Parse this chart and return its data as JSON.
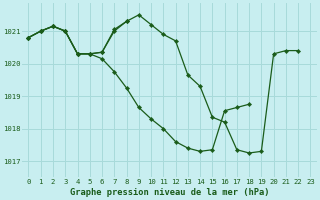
{
  "title": "Graphe pression niveau de la mer (hPa)",
  "bg_color": "#c8eef0",
  "grid_color": "#a8dada",
  "line_color": "#1a5c1a",
  "xlim": [
    -0.5,
    23.5
  ],
  "ylim": [
    1016.5,
    1021.85
  ],
  "yticks": [
    1017,
    1018,
    1019,
    1020,
    1021
  ],
  "xticks": [
    0,
    1,
    2,
    3,
    4,
    5,
    6,
    7,
    8,
    9,
    10,
    11,
    12,
    13,
    14,
    15,
    16,
    17,
    18,
    19,
    20,
    21,
    22,
    23
  ],
  "series": [
    {
      "x": [
        0,
        1,
        2,
        3,
        4,
        5,
        6,
        7,
        8,
        9,
        10,
        11,
        12,
        13,
        14,
        15,
        16,
        17,
        18,
        19,
        20,
        21,
        22
      ],
      "y": [
        1020.8,
        1021.0,
        1021.15,
        1021.0,
        1020.3,
        1020.3,
        1020.35,
        1021.05,
        1021.3,
        1021.5,
        1021.2,
        1020.9,
        1020.7,
        1019.65,
        1019.3,
        1018.35,
        1018.2,
        1017.35,
        1017.25,
        1017.3,
        1020.3,
        1020.4,
        1020.4
      ]
    },
    {
      "x": [
        0,
        1,
        2,
        3,
        4,
        5,
        6,
        7,
        8
      ],
      "y": [
        1020.8,
        1021.0,
        1021.15,
        1021.0,
        1020.3,
        1020.3,
        1020.35,
        1021.0,
        1021.3
      ]
    },
    {
      "x": [
        0,
        1,
        2,
        3,
        4,
        5,
        6,
        7,
        8,
        9,
        10,
        11,
        12,
        13,
        14,
        15,
        16,
        17,
        18
      ],
      "y": [
        1020.8,
        1021.0,
        1021.15,
        1021.0,
        1020.3,
        1020.3,
        1020.15,
        1019.75,
        1019.25,
        1018.65,
        1018.3,
        1018.0,
        1017.6,
        1017.4,
        1017.3,
        1017.35,
        1018.55,
        1018.65,
        1018.75
      ]
    }
  ]
}
